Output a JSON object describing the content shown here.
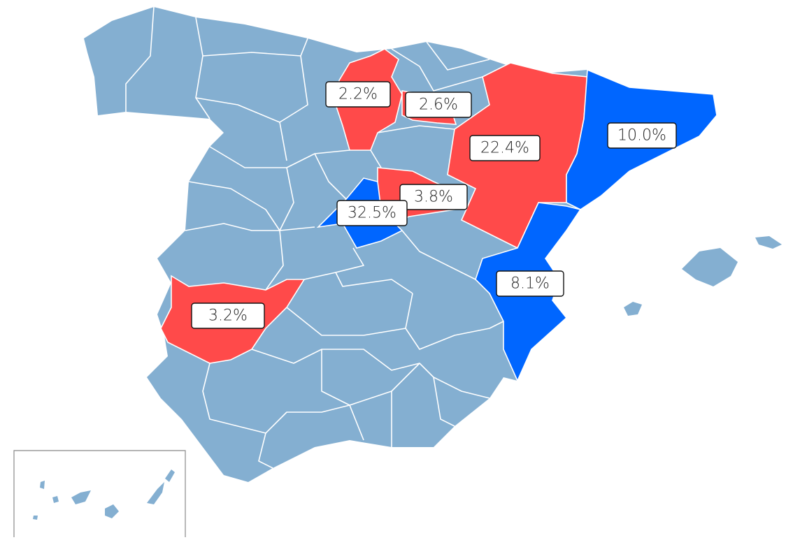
{
  "map_data": {
    "base_color": "#84afd1",
    "regions": [
      {
        "value": 2.2,
        "value_label": "2.2%",
        "color": "#ff4a4a"
      },
      {
        "value": 2.6,
        "value_label": "2.6%",
        "color": "#ff4a4a"
      },
      {
        "value": 22.4,
        "value_label": "22.4%",
        "color": "#ff4a4a"
      },
      {
        "value": 10.0,
        "value_label": "10.0%",
        "color": "#0066ff"
      },
      {
        "value": 3.8,
        "value_label": "3.8%",
        "color": "#ff4a4a"
      },
      {
        "value": 32.5,
        "value_label": "32.5%",
        "color": "#0066ff"
      },
      {
        "value": 8.1,
        "value_label": "8.1%",
        "color": "#0066ff"
      },
      {
        "value": 3.2,
        "value_label": "3.2%",
        "color": "#ff4a4a"
      }
    ]
  }
}
